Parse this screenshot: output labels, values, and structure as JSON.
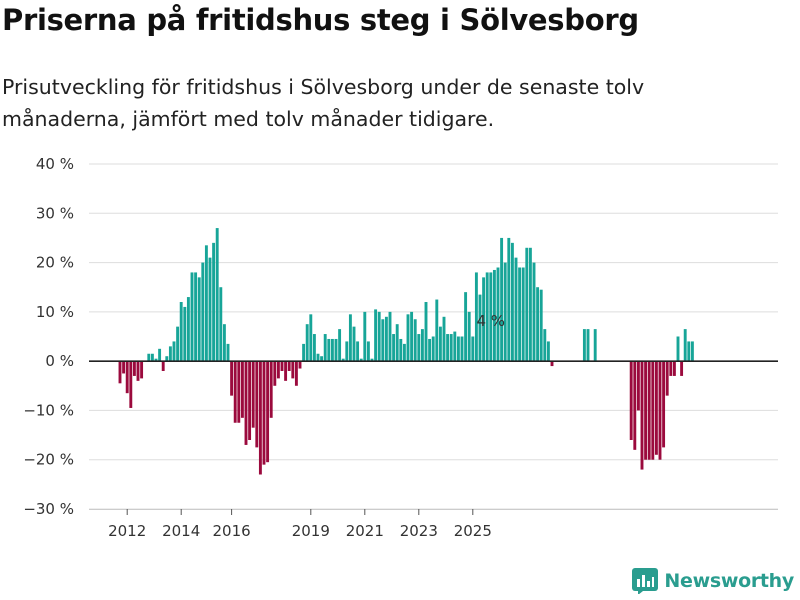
{
  "header": {
    "title": "Priserna på fritidshus steg i Sölvesborg",
    "subtitle": "Prisutveckling för fritidshus i Sölvesborg under de senaste tolv månaderna, jämfört med tolv månader tidigare."
  },
  "branding": {
    "name": "Newsworthy",
    "icon": "newsworthy-logo-icon",
    "color": "#2a9d8f"
  },
  "chart_data": {
    "type": "bar",
    "title": "Priserna på fritidshus steg i Sölvesborg",
    "xlabel": "",
    "ylabel": "",
    "ylim": [
      -30,
      40
    ],
    "y_ticks": [
      -30,
      -20,
      -10,
      0,
      10,
      20,
      30,
      40
    ],
    "y_tick_labels": [
      "−30 %",
      "−20 %",
      "−10 %",
      "0 %",
      "10 %",
      "20 %",
      "30 %",
      "40 %"
    ],
    "x_ticks": [
      {
        "index": 2,
        "label": "2012"
      },
      {
        "index": 17,
        "label": "2014"
      },
      {
        "index": 31,
        "label": "2016"
      },
      {
        "index": 53,
        "label": "2019"
      },
      {
        "index": 68,
        "label": "2021"
      },
      {
        "index": 83,
        "label": "2023"
      },
      {
        "index": 98,
        "label": "2025"
      }
    ],
    "colors": {
      "positive": "#17a598",
      "negative": "#9b0a3d",
      "axis": "#222222",
      "grid": "#dddddd"
    },
    "annotation": {
      "index": 103,
      "label": "4 %"
    },
    "values": [
      -4.5,
      -2.5,
      -6.5,
      -9.5,
      -3,
      -4,
      -3.5,
      0,
      1.5,
      1.5,
      0.5,
      2.5,
      -2,
      1,
      3,
      4,
      7,
      12,
      11,
      13,
      18,
      18,
      17,
      20,
      23.5,
      21,
      24,
      27,
      15,
      7.5,
      3.5,
      -7,
      -12.5,
      -12.5,
      -11.5,
      -17,
      -16,
      -13.5,
      -17.5,
      -23,
      -21,
      -20.5,
      -11.5,
      -5,
      -3.5,
      -2,
      -4,
      -2,
      -3.5,
      -5,
      -1.5,
      3.5,
      7.5,
      9.5,
      5.5,
      1.5,
      1,
      5.5,
      4.5,
      4.5,
      4.5,
      6.5,
      0.5,
      4,
      9.5,
      7,
      4,
      0.5,
      10,
      4,
      0.5,
      10.5,
      10,
      8.5,
      9,
      10,
      5.5,
      7.5,
      4.5,
      3.5,
      9.5,
      10,
      8.5,
      5.5,
      6.5,
      12,
      4.5,
      5,
      12.5,
      7,
      9,
      5.5,
      5.5,
      6,
      5,
      5,
      14,
      10,
      5,
      18,
      13.5,
      17,
      18,
      18,
      18.5,
      19,
      25,
      20,
      25,
      24,
      21,
      19,
      19,
      23,
      23,
      20,
      15,
      14.5,
      6.5,
      4,
      -1,
      null,
      null,
      null,
      null,
      null,
      null,
      null,
      null,
      6.5,
      6.5,
      null,
      6.5,
      null,
      null,
      null,
      null,
      null,
      null,
      null,
      null,
      null,
      -16,
      -18,
      -10,
      -22,
      -20,
      -20,
      -20,
      -19,
      -20,
      -17.5,
      -7,
      -3,
      -3,
      5,
      -3,
      6.5,
      4,
      4
    ]
  }
}
